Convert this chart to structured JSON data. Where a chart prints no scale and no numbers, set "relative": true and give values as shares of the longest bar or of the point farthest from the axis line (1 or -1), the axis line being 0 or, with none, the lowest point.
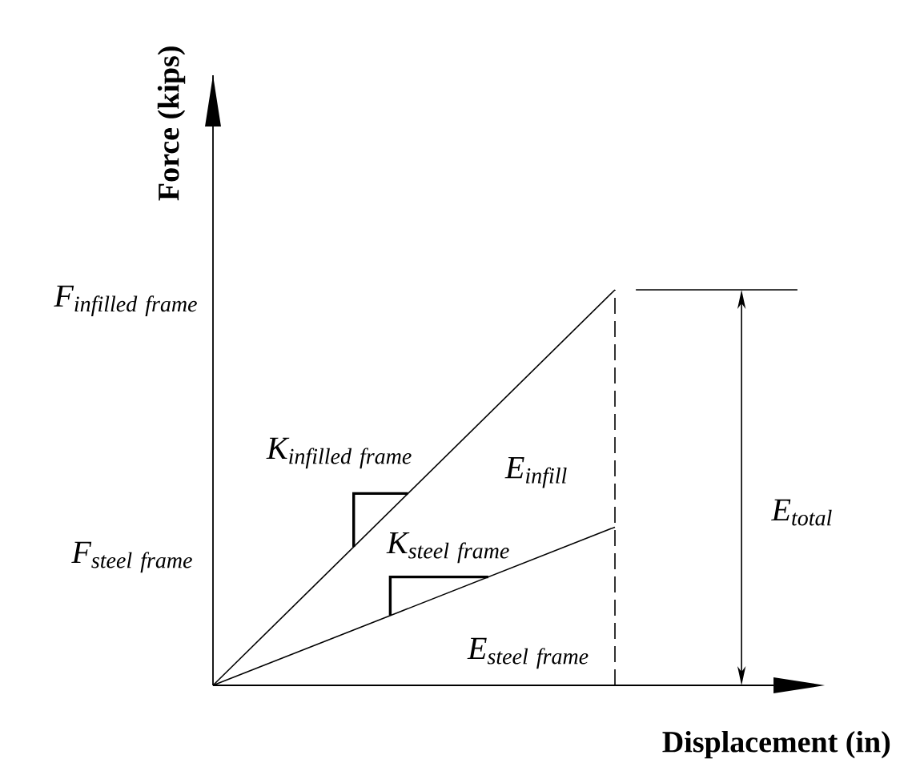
{
  "chart_data": {
    "type": "line",
    "relative": true,
    "xlabel": "Displacement (in)",
    "ylabel": "Force (kips)",
    "categories": [
      null,
      null
    ],
    "series": [
      {
        "color": "#000000",
        "values": [
          0,
          1
        ]
      },
      {
        "color": "#000000",
        "values": [
          0,
          0.4
        ]
      }
    ],
    "annotations": [
      "\\mathit{F}_{\\mathit{infilled\\ frame}}",
      "\\mathit{F}_{\\mathit{steel\\ frame}}",
      "\\mathit{K}_{\\mathit{infilled\\ frame}}",
      "\\mathit{K}_{\\mathit{steel\\ frame}}",
      "\\mathit{E}_{\\mathit{infill}}",
      "\\mathit{E}_{\\mathit{steel\\ frame}}",
      "\\mathit{E}_{\\mathit{total}}"
    ]
  }
}
